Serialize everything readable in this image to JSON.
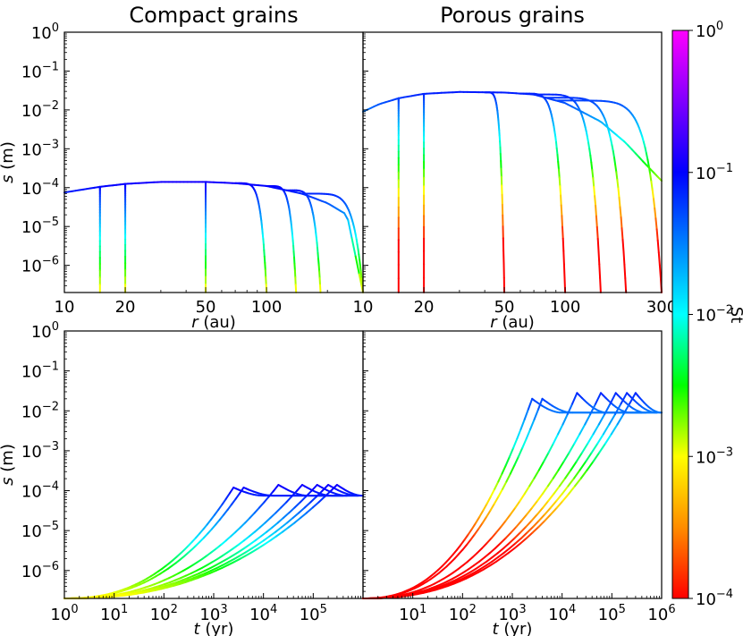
{
  "chart_data": [
    {
      "type": "line",
      "panel": "top-left",
      "title": "Compact grains",
      "xlabel": "r (au)",
      "ylabel": "s (m)",
      "xscale": "log",
      "yscale": "log",
      "xlim": [
        10,
        300
      ],
      "ylim": [
        2e-07,
        1
      ],
      "xticklabels": [
        "10",
        "20",
        "50",
        "100"
      ],
      "yticklabels": [
        "10^0",
        "10^-1",
        "10^-2",
        "10^-3",
        "10^-4",
        "10^-5",
        "10^-6"
      ],
      "envelope": {
        "x": [
          10,
          15,
          20,
          30,
          50,
          70,
          100,
          150,
          200,
          250,
          300
        ],
        "y": [
          7.5e-05,
          0.000105,
          0.000125,
          0.00014,
          0.00014,
          0.00013,
          0.00011,
          7e-05,
          4e-05,
          2e-05,
          2e-07
        ]
      },
      "series_start_r": [
        15,
        20,
        50,
        70,
        100,
        125,
        150
      ],
      "series_stop_r": [
        15,
        20,
        50,
        100,
        140,
        185,
        300
      ]
    },
    {
      "type": "line",
      "panel": "top-right",
      "title": "Porous grains",
      "xlabel": "r (au)",
      "xscale": "log",
      "yscale": "log",
      "xlim": [
        10,
        300
      ],
      "ylim": [
        2e-07,
        1
      ],
      "xticklabels": [
        "10",
        "20",
        "50",
        "100",
        "300"
      ],
      "envelope": {
        "x": [
          10,
          12,
          15,
          20,
          30,
          50,
          70,
          100,
          150,
          200,
          250,
          300
        ],
        "y": [
          0.009,
          0.014,
          0.02,
          0.026,
          0.029,
          0.028,
          0.025,
          0.015,
          0.005,
          0.0014,
          0.0004,
          0.00015
        ]
      },
      "series_start_r": [
        15,
        20,
        40,
        60,
        70,
        80,
        90
      ],
      "series_stop_r": [
        15,
        20,
        50,
        100,
        150,
        200,
        300
      ]
    },
    {
      "type": "line",
      "panel": "bottom-left",
      "xlabel": "t (yr)",
      "ylabel": "s (m)",
      "xscale": "log",
      "yscale": "log",
      "xlim": [
        1,
        1000000.0
      ],
      "ylim": [
        2e-07,
        1
      ],
      "xticklabels": [
        "10^0",
        "10^1",
        "10^2",
        "10^3",
        "10^4",
        "10^5"
      ],
      "yticklabels": [
        "10^0",
        "10^-1",
        "10^-2",
        "10^-3",
        "10^-4",
        "10^-5",
        "10^-6"
      ],
      "plateau": 7.5e-05,
      "series_peak": [
        {
          "t": 2500,
          "s": 0.00012
        },
        {
          "t": 4000,
          "s": 0.00012
        },
        {
          "t": 20000,
          "s": 0.00014
        },
        {
          "t": 60000,
          "s": 0.00014
        },
        {
          "t": 120000,
          "s": 0.00014
        },
        {
          "t": 200000,
          "s": 0.00014
        },
        {
          "t": 300000,
          "s": 0.00014
        }
      ]
    },
    {
      "type": "line",
      "panel": "bottom-right",
      "xlabel": "t (yr)",
      "xscale": "log",
      "yscale": "log",
      "xlim": [
        1,
        1000000.0
      ],
      "ylim": [
        2e-07,
        1
      ],
      "xticklabels": [
        "10^1",
        "10^2",
        "10^3",
        "10^4",
        "10^5",
        "10^6"
      ],
      "plateau": 0.009,
      "series_peak": [
        {
          "t": 2500,
          "s": 0.02
        },
        {
          "t": 4000,
          "s": 0.02
        },
        {
          "t": 20000,
          "s": 0.028
        },
        {
          "t": 60000,
          "s": 0.028
        },
        {
          "t": 120000,
          "s": 0.028
        },
        {
          "t": 200000,
          "s": 0.028
        },
        {
          "t": 300000,
          "s": 0.028
        }
      ]
    }
  ],
  "colorbar": {
    "label": "St",
    "scale": "log",
    "range": [
      0.0001,
      1
    ],
    "ticklabels": [
      "10^0",
      "10^-1",
      "10^-2",
      "10^-3",
      "10^-4"
    ],
    "colors": [
      "#ff0000",
      "#ff8c00",
      "#ffff00",
      "#00ff00",
      "#00ffff",
      "#0080ff",
      "#0000ff",
      "#8000ff",
      "#ff00ff"
    ]
  }
}
